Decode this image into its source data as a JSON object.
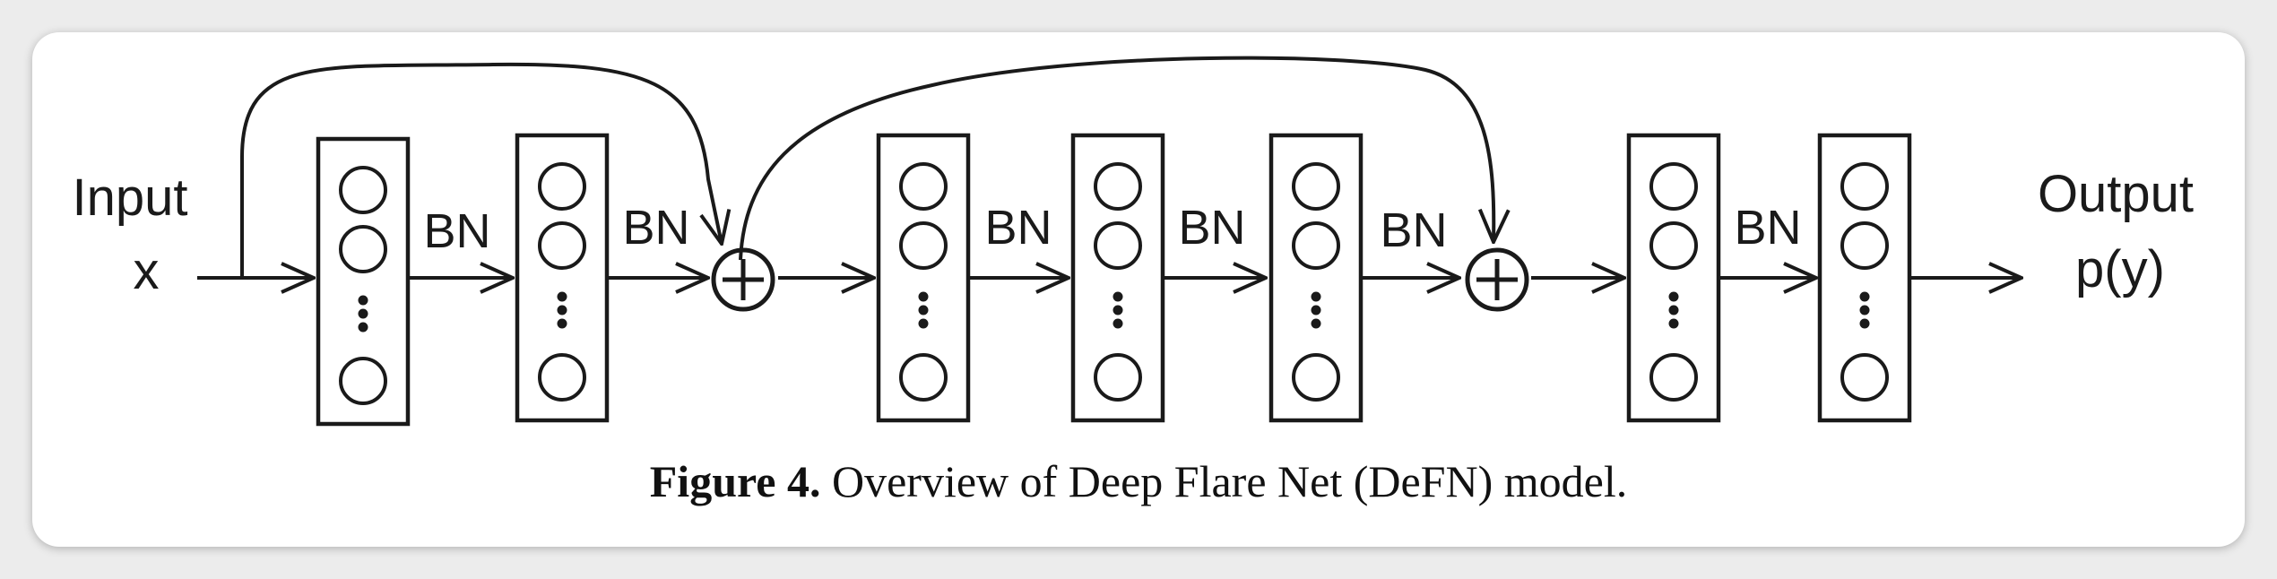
{
  "diagram": {
    "input_label": "Input",
    "input_var": "x",
    "output_label": "Output",
    "output_var": "p(y)",
    "bn_label": "BN",
    "colors": {
      "stroke": "#1a1a1a",
      "background": "#ffffff",
      "page": "#ececec"
    }
  },
  "caption": {
    "label": "Figure 4.",
    "text": "Overview of Deep Flare Net (DeFN) model."
  }
}
